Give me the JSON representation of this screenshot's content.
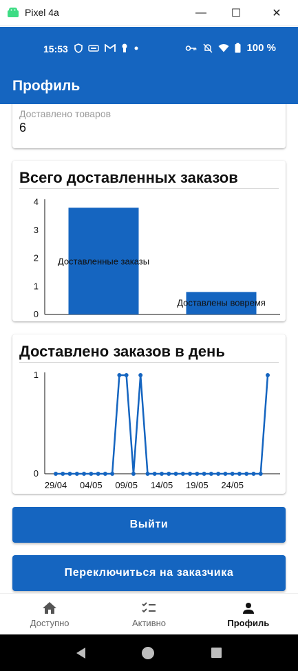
{
  "window": {
    "title": "Pixel 4a",
    "minimize_symbol": "—",
    "maximize_symbol": "☐",
    "close_symbol": "✕"
  },
  "status_bar": {
    "time": "15:53",
    "battery": "100 %"
  },
  "app_bar": {
    "title": "Профиль"
  },
  "stats": {
    "delivered_goods_label": "Доставлено товаров",
    "delivered_goods_value": "6"
  },
  "chart_data": [
    {
      "type": "bar",
      "title": "Всего доставленных заказов",
      "categories": [
        "Доставленные заказы",
        "Доставлены вовремя"
      ],
      "values": [
        3.8,
        0.8
      ],
      "yticks": [
        "0",
        "1",
        "2",
        "3",
        "4"
      ],
      "ylim": [
        0,
        4
      ],
      "color": "#1565c0",
      "grid": false
    },
    {
      "type": "line",
      "title": "Доставлено заказов в день",
      "x_tick_labels": [
        "29/04",
        "04/05",
        "09/05",
        "14/05",
        "19/05",
        "24/05"
      ],
      "yticks": [
        "0",
        "1"
      ],
      "ylim": [
        0,
        1
      ],
      "values": [
        0,
        0,
        0,
        0,
        0,
        0,
        0,
        0,
        0,
        1,
        1,
        0,
        1,
        0,
        0,
        0,
        0,
        0,
        0,
        0,
        0,
        0,
        0,
        0,
        0,
        0,
        0,
        0,
        0,
        0,
        1
      ],
      "color": "#1565c0",
      "grid": false
    }
  ],
  "buttons": {
    "logout": "Выйти",
    "switch": "Переключиться на заказчика"
  },
  "bottom_nav": {
    "items": [
      {
        "label": "Доступно",
        "icon": "home-icon"
      },
      {
        "label": "Активно",
        "icon": "checklist-icon"
      },
      {
        "label": "Профиль",
        "icon": "person-icon"
      }
    ]
  }
}
